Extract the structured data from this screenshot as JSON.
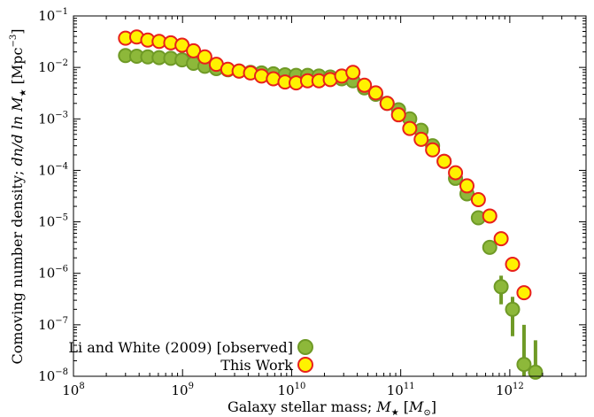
{
  "chart_data": {
    "type": "scatter",
    "xlabel_prefix": "Galaxy stellar mass; ",
    "xlabel_var": "M",
    "xlabel_sub": "★",
    "xlabel_unit_open": " [",
    "xlabel_unit_var": "M",
    "xlabel_unit_sub": "⊙",
    "xlabel_unit_close": "]",
    "ylabel_prefix": "Comoving number density; ",
    "ylabel_expr": "dn/d ln ",
    "ylabel_var": "M",
    "ylabel_sub": "★",
    "ylabel_unit": " [Mpc",
    "ylabel_unit_sup": "−3",
    "ylabel_unit_close": "]",
    "x_scale": "log",
    "y_scale": "log",
    "xlim": [
      100000000,
      5000000000000
    ],
    "ylim": [
      1e-08,
      0.1
    ],
    "x_ticks": [
      {
        "value": 100000000,
        "base": "10",
        "exp": "8"
      },
      {
        "value": 1000000000,
        "base": "10",
        "exp": "9"
      },
      {
        "value": 10000000000,
        "base": "10",
        "exp": "10"
      },
      {
        "value": 100000000000,
        "base": "10",
        "exp": "11"
      },
      {
        "value": 1000000000000,
        "base": "10",
        "exp": "12"
      }
    ],
    "y_ticks": [
      {
        "value": 1e-08,
        "base": "10",
        "exp": "−8"
      },
      {
        "value": 1e-07,
        "base": "10",
        "exp": "−7"
      },
      {
        "value": 1e-06,
        "base": "10",
        "exp": "−6"
      },
      {
        "value": 1e-05,
        "base": "10",
        "exp": "−5"
      },
      {
        "value": 0.0001,
        "base": "10",
        "exp": "−4"
      },
      {
        "value": 0.001,
        "base": "10",
        "exp": "−3"
      },
      {
        "value": 0.01,
        "base": "10",
        "exp": "−2"
      },
      {
        "value": 0.1,
        "base": "10",
        "exp": "−1"
      }
    ],
    "grid": false,
    "legend_position": "bottom-left",
    "series": [
      {
        "name": "Li and White (2009) [observed]",
        "fill": "#8db83a",
        "stroke": "#6f9a26",
        "errorbar_color": "#6f9a26",
        "points": [
          {
            "x": 300000000,
            "y": 0.017
          },
          {
            "x": 380000000,
            "y": 0.0165
          },
          {
            "x": 480000000,
            "y": 0.016
          },
          {
            "x": 610000000,
            "y": 0.0155
          },
          {
            "x": 780000000,
            "y": 0.015
          },
          {
            "x": 990000000,
            "y": 0.014
          },
          {
            "x": 1260000000,
            "y": 0.012
          },
          {
            "x": 1600000000,
            "y": 0.0105
          },
          {
            "x": 2040000000,
            "y": 0.0095
          },
          {
            "x": 2600000000,
            "y": 0.009
          },
          {
            "x": 3300000000,
            "y": 0.0085
          },
          {
            "x": 4200000000,
            "y": 0.008
          },
          {
            "x": 5300000000,
            "y": 0.0078
          },
          {
            "x": 6800000000,
            "y": 0.0075
          },
          {
            "x": 8700000000,
            "y": 0.0072
          },
          {
            "x": 11000000000,
            "y": 0.007
          },
          {
            "x": 14000000000,
            "y": 0.007
          },
          {
            "x": 17800000000,
            "y": 0.0068
          },
          {
            "x": 22600000000,
            "y": 0.0065
          },
          {
            "x": 28800000000,
            "y": 0.006
          },
          {
            "x": 36500000000,
            "y": 0.0055
          },
          {
            "x": 46500000000,
            "y": 0.004
          },
          {
            "x": 59000000000,
            "y": 0.003
          },
          {
            "x": 75000000000,
            "y": 0.002
          },
          {
            "x": 95500000000,
            "y": 0.0015
          },
          {
            "x": 121000000000,
            "y": 0.001
          },
          {
            "x": 154000000000,
            "y": 0.0006
          },
          {
            "x": 196000000000,
            "y": 0.0003
          },
          {
            "x": 250000000000,
            "y": 0.00015
          },
          {
            "x": 318000000000,
            "y": 7e-05
          },
          {
            "x": 405000000000,
            "y": 3.5e-05
          },
          {
            "x": 515000000000,
            "y": 1.2e-05
          },
          {
            "x": 655000000000,
            "y": 3.2e-06
          },
          {
            "x": 833000000000,
            "y": 5.5e-07,
            "ylo": 2.5e-07,
            "yhi": 9e-07
          },
          {
            "x": 1060000000000,
            "y": 2e-07,
            "ylo": 6e-08,
            "yhi": 3.5e-07
          },
          {
            "x": 1350000000000,
            "y": 1.7e-08,
            "ylo": 1e-08,
            "yhi": 1e-07
          },
          {
            "x": 1720000000000,
            "y": 1.2e-08,
            "ylo": 1e-08,
            "yhi": 5e-08
          }
        ]
      },
      {
        "name": "This Work",
        "fill": "#fff200",
        "stroke": "#e8201c",
        "points": [
          {
            "x": 300000000,
            "y": 0.037
          },
          {
            "x": 380000000,
            "y": 0.039
          },
          {
            "x": 480000000,
            "y": 0.034
          },
          {
            "x": 610000000,
            "y": 0.032
          },
          {
            "x": 780000000,
            "y": 0.03
          },
          {
            "x": 990000000,
            "y": 0.027
          },
          {
            "x": 1260000000,
            "y": 0.021
          },
          {
            "x": 1600000000,
            "y": 0.016
          },
          {
            "x": 2040000000,
            "y": 0.0115
          },
          {
            "x": 2600000000,
            "y": 0.0092
          },
          {
            "x": 3300000000,
            "y": 0.0085
          },
          {
            "x": 4200000000,
            "y": 0.0078
          },
          {
            "x": 5300000000,
            "y": 0.0068
          },
          {
            "x": 6800000000,
            "y": 0.006
          },
          {
            "x": 8700000000,
            "y": 0.0052
          },
          {
            "x": 11000000000,
            "y": 0.005
          },
          {
            "x": 14000000000,
            "y": 0.0055
          },
          {
            "x": 17800000000,
            "y": 0.0055
          },
          {
            "x": 22600000000,
            "y": 0.0058
          },
          {
            "x": 28800000000,
            "y": 0.0068
          },
          {
            "x": 36500000000,
            "y": 0.008
          },
          {
            "x": 46500000000,
            "y": 0.0045
          },
          {
            "x": 59000000000,
            "y": 0.0032
          },
          {
            "x": 75000000000,
            "y": 0.002
          },
          {
            "x": 95500000000,
            "y": 0.0012
          },
          {
            "x": 121000000000,
            "y": 0.00065
          },
          {
            "x": 154000000000,
            "y": 0.0004
          },
          {
            "x": 196000000000,
            "y": 0.00025
          },
          {
            "x": 250000000000,
            "y": 0.00015
          },
          {
            "x": 318000000000,
            "y": 9e-05
          },
          {
            "x": 405000000000,
            "y": 5e-05
          },
          {
            "x": 515000000000,
            "y": 2.7e-05
          },
          {
            "x": 655000000000,
            "y": 1.3e-05
          },
          {
            "x": 833000000000,
            "y": 4.7e-06
          },
          {
            "x": 1060000000000,
            "y": 1.5e-06
          },
          {
            "x": 1350000000000,
            "y": 4.2e-07
          }
        ]
      }
    ]
  }
}
